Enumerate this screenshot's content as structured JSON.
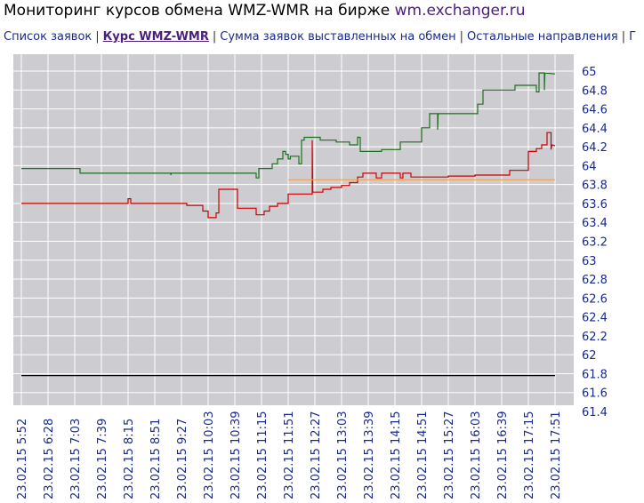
{
  "title": {
    "main": "Мониторинг курсов обмена WMZ-WMR на бирже",
    "site": "wm.exchanger.ru"
  },
  "nav": {
    "items": [
      {
        "label": "Список заявок",
        "active": false
      },
      {
        "label": "Курс WMZ-WMR",
        "active": true
      },
      {
        "label": "Сумма заявок выставленных на обмен",
        "active": false
      },
      {
        "label": "Остальные направления",
        "active": false
      }
    ],
    "separator": "|",
    "trailing": "Г"
  },
  "colors": {
    "plot_bg": "#cdcdd1",
    "grid": "#ffffff",
    "green_series": "#1f6e1f",
    "red_series": "#cc0000",
    "orange_line": "#f0a050",
    "black_line": "#000000",
    "tick_text": "#1a2a8a"
  },
  "chart_data": {
    "type": "line",
    "title": "",
    "xlabel": "",
    "ylabel": "",
    "ylim": [
      61.4,
      65.1
    ],
    "grid": true,
    "yticks": [
      "65",
      "64.8",
      "64.6",
      "64.4",
      "64.2",
      "64",
      "63.8",
      "63.6",
      "63.4",
      "63.2",
      "63",
      "62.8",
      "62.6",
      "62.4",
      "62.2",
      "62",
      "61.8",
      "61.6",
      "61.4"
    ],
    "xticks": [
      "23.02.15 5:52",
      "23.02.15 6:28",
      "23.02.15 7:03",
      "23.02.15 7:39",
      "23.02.15 8:15",
      "23.02.15 8:51",
      "23.02.15 9:27",
      "23.02.15 10:03",
      "23.02.15 10:39",
      "23.02.15 11:15",
      "23.02.15 11:51",
      "23.02.15 12:27",
      "23.02.15 13:03",
      "23.02.15 13:39",
      "23.02.15 14:15",
      "23.02.15 14:51",
      "23.02.15 15:27",
      "23.02.15 16:03",
      "23.02.15 16:39",
      "23.02.15 17:15",
      "23.02.15 17:51"
    ],
    "series": [
      {
        "color": "green",
        "values": [
          [
            0,
            63.97
          ],
          [
            2.2,
            63.97
          ],
          [
            2.2,
            63.92
          ],
          [
            5.6,
            63.92
          ],
          [
            5.6,
            63.9
          ],
          [
            5.62,
            63.92
          ],
          [
            8.8,
            63.92
          ],
          [
            8.8,
            63.87
          ],
          [
            8.9,
            63.87
          ],
          [
            8.9,
            63.97
          ],
          [
            9.4,
            63.97
          ],
          [
            9.4,
            64.02
          ],
          [
            9.6,
            64.02
          ],
          [
            9.6,
            64.07
          ],
          [
            9.8,
            64.07
          ],
          [
            9.8,
            64.15
          ],
          [
            9.9,
            64.15
          ],
          [
            9.9,
            64.12
          ],
          [
            10.0,
            64.12
          ],
          [
            10.0,
            64.07
          ],
          [
            10.08,
            64.07
          ],
          [
            10.08,
            64.1
          ],
          [
            10.4,
            64.1
          ],
          [
            10.4,
            64.02
          ],
          [
            10.5,
            64.02
          ],
          [
            10.5,
            64.27
          ],
          [
            10.6,
            64.27
          ],
          [
            10.6,
            64.3
          ],
          [
            11.2,
            64.3
          ],
          [
            11.2,
            64.27
          ],
          [
            11.8,
            64.27
          ],
          [
            11.8,
            64.25
          ],
          [
            12.3,
            64.25
          ],
          [
            12.3,
            64.22
          ],
          [
            12.6,
            64.22
          ],
          [
            12.6,
            64.3
          ],
          [
            12.7,
            64.3
          ],
          [
            12.7,
            64.15
          ],
          [
            13.5,
            64.15
          ],
          [
            13.5,
            64.17
          ],
          [
            14.2,
            64.17
          ],
          [
            14.2,
            64.25
          ],
          [
            15.0,
            64.25
          ],
          [
            15.0,
            64.4
          ],
          [
            15.3,
            64.4
          ],
          [
            15.3,
            64.55
          ],
          [
            15.6,
            64.55
          ],
          [
            15.6,
            64.38
          ],
          [
            15.62,
            64.55
          ],
          [
            17.1,
            64.55
          ],
          [
            17.1,
            64.65
          ],
          [
            17.3,
            64.65
          ],
          [
            17.3,
            64.8
          ],
          [
            18.5,
            64.8
          ],
          [
            18.5,
            64.85
          ],
          [
            19.3,
            64.85
          ],
          [
            19.3,
            64.78
          ],
          [
            19.4,
            64.78
          ],
          [
            19.4,
            64.98
          ],
          [
            19.6,
            64.98
          ],
          [
            19.6,
            64.8
          ],
          [
            19.62,
            64.98
          ],
          [
            20.0,
            64.97
          ]
        ]
      },
      {
        "color": "red",
        "values": [
          [
            0,
            63.6
          ],
          [
            4.0,
            63.6
          ],
          [
            4.0,
            63.65
          ],
          [
            4.1,
            63.65
          ],
          [
            4.1,
            63.6
          ],
          [
            6.2,
            63.6
          ],
          [
            6.2,
            63.58
          ],
          [
            6.8,
            63.58
          ],
          [
            6.8,
            63.52
          ],
          [
            7.0,
            63.52
          ],
          [
            7.0,
            63.45
          ],
          [
            7.3,
            63.45
          ],
          [
            7.3,
            63.5
          ],
          [
            7.4,
            63.5
          ],
          [
            7.4,
            63.75
          ],
          [
            8.1,
            63.75
          ],
          [
            8.1,
            63.55
          ],
          [
            8.8,
            63.55
          ],
          [
            8.8,
            63.48
          ],
          [
            9.1,
            63.48
          ],
          [
            9.1,
            63.52
          ],
          [
            9.3,
            63.52
          ],
          [
            9.3,
            63.57
          ],
          [
            9.6,
            63.57
          ],
          [
            9.6,
            63.6
          ],
          [
            10.0,
            63.6
          ],
          [
            10.0,
            63.7
          ],
          [
            10.9,
            63.7
          ],
          [
            10.9,
            64.27
          ],
          [
            10.92,
            63.72
          ],
          [
            11.3,
            63.72
          ],
          [
            11.3,
            63.75
          ],
          [
            11.6,
            63.75
          ],
          [
            11.6,
            63.77
          ],
          [
            12.0,
            63.77
          ],
          [
            12.0,
            63.79
          ],
          [
            12.3,
            63.79
          ],
          [
            12.3,
            63.82
          ],
          [
            12.6,
            63.82
          ],
          [
            12.6,
            63.88
          ],
          [
            12.8,
            63.88
          ],
          [
            12.8,
            63.92
          ],
          [
            13.3,
            63.92
          ],
          [
            13.3,
            63.87
          ],
          [
            13.5,
            63.87
          ],
          [
            13.5,
            63.92
          ],
          [
            14.2,
            63.92
          ],
          [
            14.2,
            63.87
          ],
          [
            14.3,
            63.87
          ],
          [
            14.3,
            63.92
          ],
          [
            14.6,
            63.92
          ],
          [
            14.6,
            63.88
          ],
          [
            16.0,
            63.88
          ],
          [
            16.0,
            63.89
          ],
          [
            17.0,
            63.89
          ],
          [
            17.0,
            63.9
          ],
          [
            18.3,
            63.9
          ],
          [
            18.3,
            63.95
          ],
          [
            19.0,
            63.95
          ],
          [
            19.0,
            64.15
          ],
          [
            19.3,
            64.15
          ],
          [
            19.3,
            64.18
          ],
          [
            19.5,
            64.18
          ],
          [
            19.5,
            64.22
          ],
          [
            19.7,
            64.22
          ],
          [
            19.7,
            64.35
          ],
          [
            19.85,
            64.35
          ],
          [
            19.85,
            64.17
          ],
          [
            19.88,
            64.22
          ],
          [
            20.0,
            64.21
          ]
        ]
      },
      {
        "color": "orange",
        "values": [
          [
            10.0,
            63.85
          ],
          [
            20.0,
            63.85
          ]
        ]
      },
      {
        "color": "black",
        "values": [
          [
            0,
            61.78
          ],
          [
            20.0,
            61.78
          ]
        ]
      }
    ]
  }
}
